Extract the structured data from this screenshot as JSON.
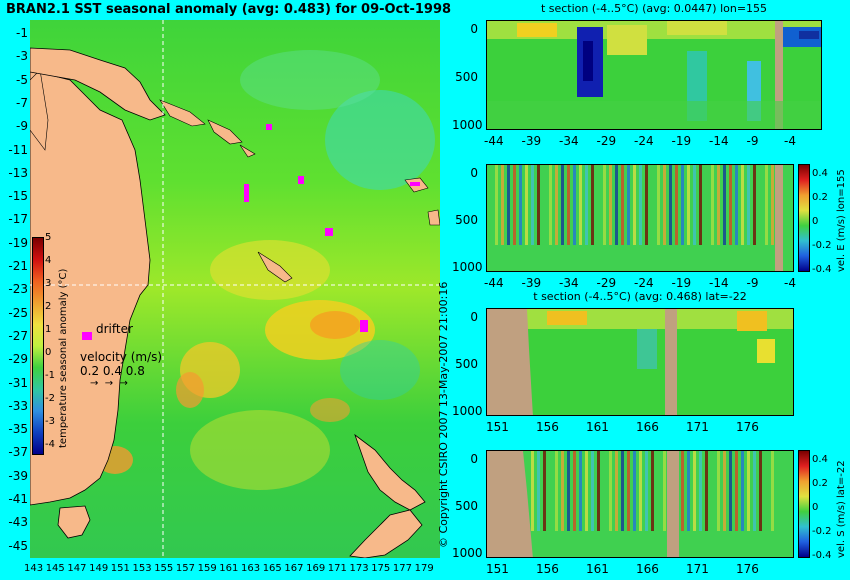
{
  "map": {
    "title": "BRAN2.1 SST seasonal anomaly (avg: 0.483) for 09-Oct-1998",
    "lat_ticks": [
      "-1",
      "-3",
      "-5",
      "-7",
      "-9",
      "-11",
      "-13",
      "-15",
      "-17",
      "-19",
      "-21",
      "-23",
      "-25",
      "-27",
      "-29",
      "-31",
      "-33",
      "-35",
      "-37",
      "-39",
      "-41",
      "-43",
      "-45"
    ],
    "lon_ticks": [
      "143",
      "145",
      "147",
      "149",
      "151",
      "153",
      "155",
      "157",
      "159",
      "161",
      "163",
      "165",
      "167",
      "169",
      "171",
      "173",
      "175",
      "177",
      "179"
    ],
    "colorbar": {
      "label": "temperature seasonal anomaly (°C)",
      "ticks": [
        "5",
        "4",
        "3",
        "2",
        "1",
        "0",
        "-1",
        "-2",
        "-3",
        "-4"
      ]
    },
    "drifter_label": "drifter",
    "velocity": {
      "label": "velocity (m/s)",
      "values": "0.2 0.4 0.8"
    },
    "colors": {
      "ocean": "#2fcc2f",
      "land": "#f7b98a",
      "background": "#00ffff",
      "drifter": "#ff00ff"
    }
  },
  "sections": [
    {
      "title": "t section (-4..5°C) (avg: 0.0447) lon=155",
      "y_ticks": [
        "0",
        "500",
        "1000"
      ],
      "x_ticks": [
        "-44",
        "-39",
        "-34",
        "-29",
        "-24",
        "-19",
        "-14",
        "-9",
        "-4"
      ]
    },
    {
      "title": "",
      "side_label": "vel. E (m/s) lon=155",
      "colorbar_ticks": [
        "0.4",
        "0.2",
        "0",
        "-0.2",
        "-0.4"
      ],
      "y_ticks": [
        "0",
        "500",
        "1000"
      ],
      "x_ticks": [
        "-44",
        "-39",
        "-34",
        "-29",
        "-24",
        "-19",
        "-14",
        "-9",
        "-4"
      ]
    },
    {
      "title": "t section (-4..5°C) (avg: 0.468) lat=-22",
      "y_ticks": [
        "0",
        "500",
        "1000"
      ],
      "x_ticks": [
        "151",
        "156",
        "161",
        "166",
        "171",
        "176"
      ]
    },
    {
      "title": "",
      "side_label": "vel. S (m/s) lat=-22",
      "colorbar_ticks": [
        "0.4",
        "0.2",
        "0",
        "-0.2",
        "-0.4"
      ],
      "y_ticks": [
        "0",
        "500",
        "1000"
      ],
      "x_ticks": [
        "151",
        "156",
        "161",
        "166",
        "171",
        "176"
      ]
    }
  ],
  "copyright": "© Copyright CSIRO 2007   13-May-2007 21:00:16"
}
